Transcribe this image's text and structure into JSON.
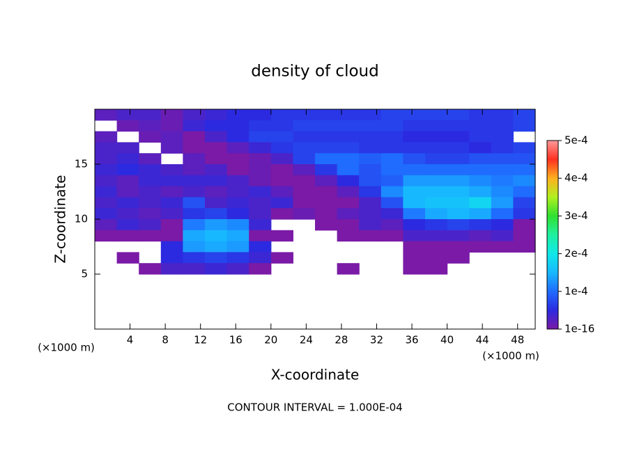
{
  "chart_data": {
    "type": "heatmap",
    "title": "density of cloud",
    "x_label": "X-coordinate",
    "y_label": "Z-coordinate",
    "y_unit": "(×1000 m)",
    "x_unit": "(×1000 m)",
    "annotation": "CONTOUR INTERVAL = 1.000E-04",
    "xlim": [
      0,
      50
    ],
    "ylim": [
      0,
      20
    ],
    "xticks": [
      4,
      8,
      12,
      16,
      20,
      24,
      28,
      32,
      36,
      40,
      44,
      48
    ],
    "yticks": [
      5,
      10,
      15
    ],
    "clim": [
      1e-16,
      0.0005
    ],
    "cticks": [
      {
        "value": 1e-16,
        "label": "1e-16"
      },
      {
        "value": 0.0001,
        "label": "1e-4"
      },
      {
        "value": 0.0002,
        "label": "2e-4"
      },
      {
        "value": 0.0003,
        "label": "3e-4"
      },
      {
        "value": 0.0004,
        "label": "4e-4"
      },
      {
        "value": 0.0005,
        "label": "5e-4"
      }
    ],
    "colorscale": [
      "#7a1aa6",
      "#2c2ae0",
      "#1f6cff",
      "#18b8ff",
      "#10e8e8",
      "#20f0a0",
      "#30e030",
      "#b0f020",
      "#ffb020",
      "#ff3020",
      "#ff9a9a"
    ],
    "x": [
      1.25,
      3.75,
      6.25,
      8.75,
      11.25,
      13.75,
      16.25,
      18.75,
      21.25,
      23.75,
      26.25,
      28.75,
      31.25,
      33.75,
      36.25,
      38.75,
      41.25,
      43.75,
      46.25,
      48.75
    ],
    "y": [
      19.5,
      18.5,
      17.5,
      16.5,
      15.5,
      14.5,
      13.5,
      12.5,
      11.5,
      10.5,
      9.5,
      8.5,
      7.5,
      6.5,
      5.5,
      4.5,
      3.5,
      2.5,
      1.5,
      0.5
    ],
    "values": [
      [
        2e-05,
        3e-05,
        3e-05,
        1e-05,
        3e-05,
        4e-05,
        5e-05,
        5e-05,
        6e-05,
        6e-05,
        6e-05,
        6e-05,
        6e-05,
        7e-05,
        7e-05,
        7e-05,
        7e-05,
        6e-05,
        6e-05,
        7e-05
      ],
      [
        null,
        1e-05,
        2e-05,
        1e-05,
        4e-05,
        5e-05,
        5e-05,
        6e-05,
        6e-05,
        7e-05,
        7e-05,
        7e-05,
        7e-05,
        7e-05,
        6e-05,
        6e-05,
        6e-05,
        6e-05,
        6e-05,
        7e-05
      ],
      [
        2e-05,
        null,
        1e-05,
        2e-05,
        1e-16,
        3e-05,
        5e-05,
        7e-05,
        7e-05,
        6e-05,
        6e-05,
        6e-05,
        6e-05,
        6e-05,
        5e-05,
        5e-05,
        5e-05,
        6e-05,
        6e-05,
        null
      ],
      [
        3e-05,
        3e-05,
        null,
        2e-05,
        1e-16,
        1e-16,
        2e-05,
        4e-05,
        6e-05,
        7e-05,
        7e-05,
        7e-05,
        6e-05,
        6e-05,
        6e-05,
        6e-05,
        6e-05,
        5e-05,
        6e-05,
        7e-05
      ],
      [
        3e-05,
        4e-05,
        2e-05,
        null,
        2e-05,
        1e-16,
        1e-16,
        1e-05,
        3e-05,
        7e-05,
        0.0001,
        0.0001,
        9e-05,
        0.0001,
        8e-05,
        7e-05,
        7e-05,
        8e-05,
        8e-05,
        8e-05
      ],
      [
        4e-05,
        5e-05,
        4e-05,
        3e-05,
        2e-05,
        3e-05,
        1e-16,
        1e-05,
        1e-16,
        2e-05,
        6e-05,
        0.0001,
        8e-05,
        0.0001,
        0.0001,
        0.0001,
        0.0001,
        0.0001,
        0.0001,
        0.0001
      ],
      [
        3e-05,
        2e-05,
        4e-05,
        4e-05,
        4e-05,
        4e-05,
        3e-05,
        1e-05,
        1e-16,
        1e-16,
        2e-05,
        5e-05,
        8e-05,
        9e-05,
        0.00013,
        0.00013,
        0.00013,
        0.00012,
        0.00011,
        0.00012
      ],
      [
        4e-05,
        2e-05,
        3e-05,
        2e-05,
        3e-05,
        2e-05,
        3e-05,
        4e-05,
        2e-05,
        1e-16,
        1e-16,
        2e-05,
        6e-05,
        0.00012,
        0.00015,
        0.00015,
        0.00015,
        0.00014,
        0.00012,
        0.0001
      ],
      [
        3e-05,
        4e-05,
        3e-05,
        4e-05,
        8e-05,
        3e-05,
        4e-05,
        3e-05,
        4e-05,
        1e-16,
        1e-16,
        1e-16,
        3e-05,
        8e-05,
        0.00015,
        0.00016,
        0.00016,
        0.00018,
        0.00013,
        7e-05
      ],
      [
        4e-05,
        3e-05,
        2e-05,
        3e-05,
        6e-05,
        7e-05,
        5e-05,
        3e-05,
        1e-16,
        1e-05,
        1e-16,
        2e-05,
        3e-05,
        4e-05,
        0.00011,
        0.00014,
        0.00015,
        0.00014,
        0.0001,
        6e-05
      ],
      [
        2e-05,
        4e-05,
        3e-05,
        1e-16,
        0.00011,
        0.00013,
        0.00012,
        4e-05,
        null,
        null,
        1e-16,
        1e-16,
        3e-05,
        2e-05,
        5e-05,
        6e-05,
        7e-05,
        6e-05,
        5e-05,
        1e-16
      ],
      [
        1e-16,
        1e-16,
        1e-16,
        1e-16,
        0.00014,
        0.00015,
        0.00014,
        1e-16,
        1e-16,
        null,
        null,
        1e-16,
        1e-16,
        1e-16,
        3e-05,
        3e-05,
        3e-05,
        2e-05,
        3e-05,
        1e-16
      ],
      [
        null,
        null,
        null,
        5e-05,
        0.00013,
        0.00014,
        0.00013,
        5e-05,
        null,
        null,
        null,
        null,
        null,
        null,
        1e-16,
        1e-16,
        1e-16,
        1e-16,
        1e-16,
        1e-16
      ],
      [
        null,
        1e-16,
        null,
        5e-05,
        6e-05,
        7e-05,
        6e-05,
        4e-05,
        1e-16,
        null,
        null,
        null,
        null,
        null,
        1e-16,
        1e-16,
        1e-16,
        null,
        null,
        null
      ],
      [
        null,
        null,
        1e-16,
        3e-05,
        3e-05,
        4e-05,
        3e-05,
        1e-16,
        null,
        null,
        null,
        1e-16,
        null,
        null,
        1e-16,
        1e-16,
        null,
        null,
        null,
        null
      ],
      [
        null,
        null,
        null,
        null,
        null,
        null,
        null,
        null,
        null,
        null,
        null,
        null,
        null,
        null,
        null,
        null,
        null,
        null,
        null,
        null
      ],
      [
        null,
        null,
        null,
        null,
        null,
        null,
        null,
        null,
        null,
        null,
        null,
        null,
        null,
        null,
        null,
        null,
        null,
        null,
        null,
        null
      ],
      [
        null,
        null,
        null,
        null,
        null,
        null,
        null,
        null,
        null,
        null,
        null,
        null,
        null,
        null,
        null,
        null,
        null,
        null,
        null,
        null
      ],
      [
        null,
        null,
        null,
        null,
        null,
        null,
        null,
        null,
        null,
        null,
        null,
        null,
        null,
        null,
        null,
        null,
        null,
        null,
        null,
        null
      ],
      [
        null,
        null,
        null,
        null,
        null,
        null,
        null,
        null,
        null,
        null,
        null,
        null,
        null,
        null,
        null,
        null,
        null,
        null,
        null,
        null
      ]
    ]
  }
}
